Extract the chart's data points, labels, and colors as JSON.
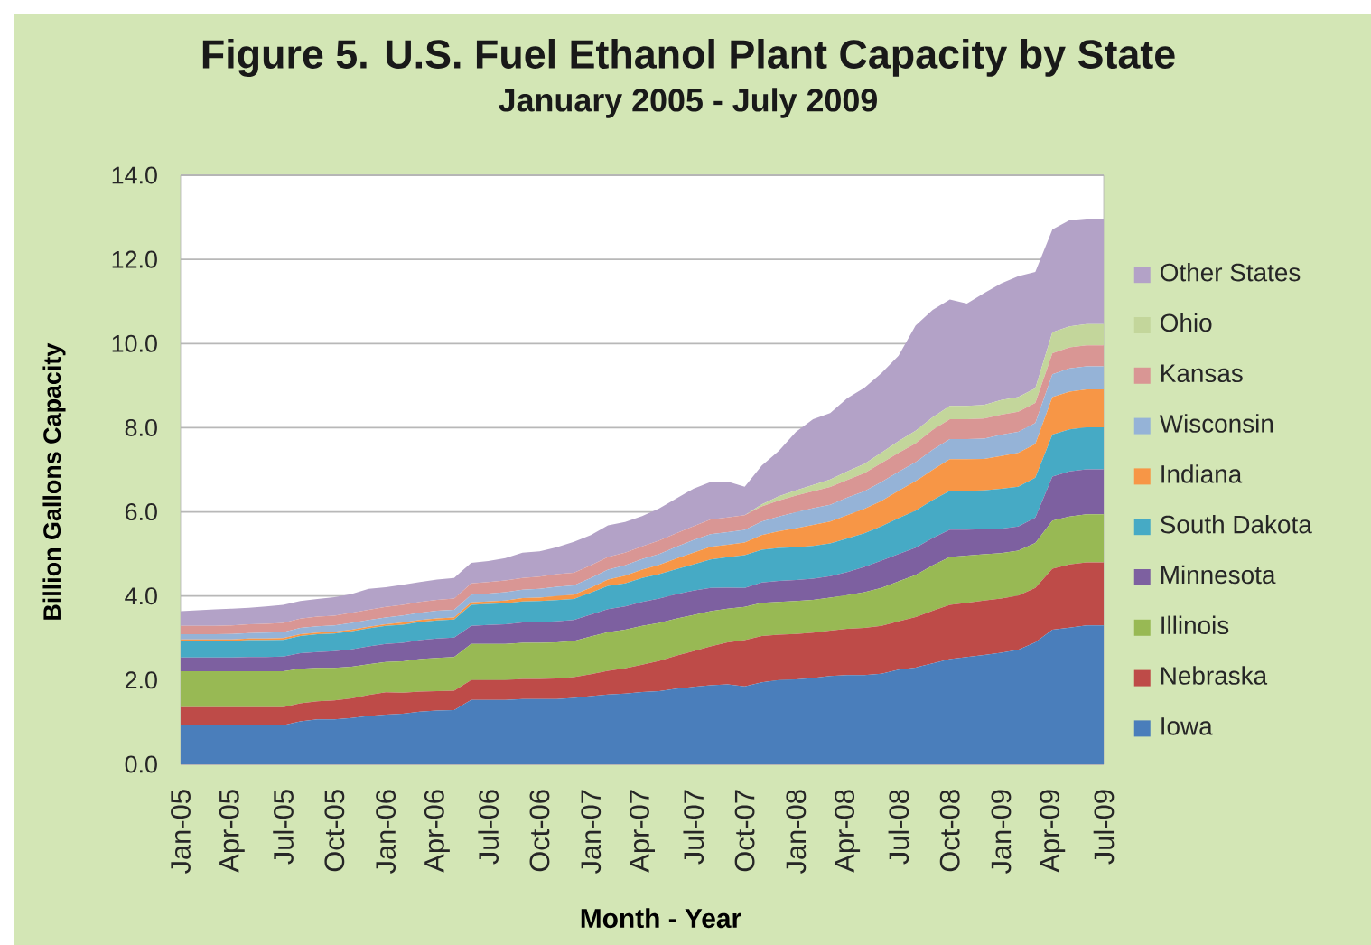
{
  "chart_data": {
    "type": "area",
    "title": "Figure 5. U.S. Fuel Ethanol Plant Capacity by State",
    "subtitle": "January 2005 - July 2009",
    "xlabel": "Month - Year",
    "ylabel": "Billion Gallons Capacity",
    "categories": [
      "Jan-05",
      null,
      null,
      "Apr-05",
      null,
      null,
      "Jul-05",
      null,
      null,
      "Oct-05",
      null,
      null,
      "Jan-06",
      null,
      null,
      "Apr-06",
      null,
      null,
      "Jul-06",
      null,
      null,
      "Oct-06",
      null,
      null,
      "Jan-07",
      null,
      null,
      "Apr-07",
      null,
      null,
      "Jul-07",
      null,
      null,
      "Oct-07",
      null,
      null,
      "Jan-08",
      null,
      null,
      "Apr-08",
      null,
      null,
      "Jul-08",
      null,
      null,
      "Oct-08",
      null,
      null,
      "Jan-09",
      null,
      null,
      "Apr-09",
      null,
      null,
      "Jul-09"
    ],
    "stacked": true,
    "ylim": [
      0,
      14
    ],
    "yticks": [
      {
        "value": 0,
        "label": "0.0"
      },
      {
        "value": 2,
        "label": "2.0"
      },
      {
        "value": 4,
        "label": "4.0"
      },
      {
        "value": 6,
        "label": "6.0"
      },
      {
        "value": 8,
        "label": "8.0"
      },
      {
        "value": 10,
        "label": "10.0"
      },
      {
        "value": 12,
        "label": "12.0"
      },
      {
        "value": 14,
        "label": "14.0"
      }
    ],
    "grid": "y",
    "legend": "right",
    "series": [
      {
        "name": "Iowa",
        "color": "#4a7ebb",
        "values": [
          0.93,
          0.93,
          0.93,
          0.93,
          0.93,
          0.93,
          0.93,
          1.02,
          1.07,
          1.07,
          1.1,
          1.15,
          1.18,
          1.2,
          1.25,
          1.28,
          1.29,
          1.53,
          1.53,
          1.53,
          1.55,
          1.55,
          1.55,
          1.58,
          1.62,
          1.66,
          1.68,
          1.72,
          1.74,
          1.8,
          1.84,
          1.88,
          1.9,
          1.85,
          1.95,
          2.0,
          2.02,
          2.05,
          2.1,
          2.12,
          2.12,
          2.15,
          2.25,
          2.3,
          2.4,
          2.5,
          2.55,
          2.6,
          2.65,
          2.72,
          2.9,
          3.2,
          3.25,
          3.3,
          3.3
        ]
      },
      {
        "name": "Nebraska",
        "color": "#be4b48",
        "values": [
          0.43,
          0.43,
          0.43,
          0.43,
          0.43,
          0.43,
          0.43,
          0.43,
          0.43,
          0.45,
          0.47,
          0.5,
          0.53,
          0.5,
          0.48,
          0.46,
          0.46,
          0.47,
          0.47,
          0.47,
          0.48,
          0.48,
          0.49,
          0.49,
          0.52,
          0.56,
          0.6,
          0.65,
          0.72,
          0.78,
          0.85,
          0.92,
          1.0,
          1.1,
          1.1,
          1.08,
          1.08,
          1.08,
          1.08,
          1.1,
          1.12,
          1.14,
          1.15,
          1.2,
          1.25,
          1.29,
          1.29,
          1.29,
          1.29,
          1.29,
          1.29,
          1.45,
          1.5,
          1.5,
          1.5
        ]
      },
      {
        "name": "Illinois",
        "color": "#98b954",
        "values": [
          0.85,
          0.85,
          0.85,
          0.85,
          0.85,
          0.85,
          0.85,
          0.82,
          0.79,
          0.77,
          0.75,
          0.73,
          0.72,
          0.75,
          0.77,
          0.79,
          0.8,
          0.86,
          0.86,
          0.86,
          0.86,
          0.86,
          0.86,
          0.86,
          0.9,
          0.92,
          0.92,
          0.92,
          0.9,
          0.88,
          0.86,
          0.84,
          0.8,
          0.79,
          0.79,
          0.78,
          0.78,
          0.78,
          0.78,
          0.8,
          0.85,
          0.9,
          0.95,
          1.0,
          1.08,
          1.14,
          1.12,
          1.1,
          1.08,
          1.07,
          1.07,
          1.14,
          1.14,
          1.14,
          1.14
        ]
      },
      {
        "name": "Minnesota",
        "color": "#7d60a0",
        "values": [
          0.33,
          0.33,
          0.33,
          0.33,
          0.34,
          0.34,
          0.35,
          0.37,
          0.38,
          0.4,
          0.41,
          0.42,
          0.43,
          0.44,
          0.45,
          0.46,
          0.46,
          0.43,
          0.45,
          0.47,
          0.48,
          0.49,
          0.5,
          0.5,
          0.52,
          0.55,
          0.55,
          0.57,
          0.58,
          0.58,
          0.58,
          0.55,
          0.5,
          0.45,
          0.48,
          0.5,
          0.5,
          0.5,
          0.51,
          0.55,
          0.6,
          0.65,
          0.65,
          0.65,
          0.65,
          0.65,
          0.62,
          0.6,
          0.58,
          0.57,
          0.6,
          1.05,
          1.07,
          1.07,
          1.07
        ]
      },
      {
        "name": "South Dakota",
        "color": "#46aac5",
        "values": [
          0.39,
          0.39,
          0.39,
          0.39,
          0.4,
          0.4,
          0.4,
          0.41,
          0.42,
          0.42,
          0.43,
          0.43,
          0.43,
          0.43,
          0.43,
          0.43,
          0.43,
          0.5,
          0.5,
          0.5,
          0.5,
          0.5,
          0.5,
          0.5,
          0.52,
          0.55,
          0.55,
          0.57,
          0.58,
          0.6,
          0.62,
          0.68,
          0.72,
          0.78,
          0.78,
          0.78,
          0.78,
          0.78,
          0.78,
          0.8,
          0.8,
          0.82,
          0.85,
          0.88,
          0.9,
          0.92,
          0.92,
          0.92,
          0.95,
          0.95,
          0.95,
          1.0,
          1.0,
          1.0,
          1.0
        ]
      },
      {
        "name": "Indiana",
        "color": "#f79646",
        "values": [
          0.04,
          0.04,
          0.04,
          0.04,
          0.04,
          0.04,
          0.04,
          0.04,
          0.04,
          0.04,
          0.04,
          0.04,
          0.04,
          0.05,
          0.05,
          0.05,
          0.05,
          0.06,
          0.06,
          0.06,
          0.08,
          0.08,
          0.1,
          0.1,
          0.12,
          0.15,
          0.18,
          0.2,
          0.22,
          0.25,
          0.28,
          0.3,
          0.3,
          0.3,
          0.35,
          0.4,
          0.45,
          0.5,
          0.52,
          0.55,
          0.58,
          0.6,
          0.65,
          0.7,
          0.72,
          0.75,
          0.75,
          0.75,
          0.78,
          0.8,
          0.8,
          0.89,
          0.9,
          0.9,
          0.9
        ]
      },
      {
        "name": "Wisconsin",
        "color": "#95b3d7",
        "values": [
          0.12,
          0.12,
          0.12,
          0.13,
          0.13,
          0.14,
          0.14,
          0.15,
          0.15,
          0.15,
          0.16,
          0.16,
          0.16,
          0.17,
          0.17,
          0.18,
          0.18,
          0.18,
          0.19,
          0.2,
          0.2,
          0.21,
          0.22,
          0.22,
          0.23,
          0.24,
          0.25,
          0.25,
          0.26,
          0.28,
          0.3,
          0.3,
          0.3,
          0.3,
          0.32,
          0.35,
          0.38,
          0.4,
          0.4,
          0.42,
          0.42,
          0.45,
          0.45,
          0.45,
          0.48,
          0.48,
          0.48,
          0.48,
          0.5,
          0.5,
          0.5,
          0.54,
          0.55,
          0.55,
          0.55
        ]
      },
      {
        "name": "Kansas",
        "color": "#d99694",
        "values": [
          0.2,
          0.2,
          0.2,
          0.2,
          0.21,
          0.21,
          0.22,
          0.22,
          0.23,
          0.23,
          0.24,
          0.24,
          0.25,
          0.25,
          0.26,
          0.26,
          0.27,
          0.27,
          0.27,
          0.28,
          0.28,
          0.29,
          0.3,
          0.3,
          0.3,
          0.3,
          0.3,
          0.3,
          0.32,
          0.32,
          0.33,
          0.35,
          0.35,
          0.35,
          0.36,
          0.38,
          0.4,
          0.4,
          0.42,
          0.42,
          0.43,
          0.45,
          0.45,
          0.45,
          0.47,
          0.47,
          0.47,
          0.48,
          0.48,
          0.48,
          0.48,
          0.5,
          0.5,
          0.5,
          0.5
        ]
      },
      {
        "name": "Ohio",
        "color": "#c3d69b",
        "values": [
          0,
          0,
          0,
          0,
          0,
          0,
          0,
          0,
          0,
          0,
          0,
          0,
          0,
          0,
          0,
          0,
          0,
          0,
          0,
          0,
          0,
          0,
          0,
          0,
          0,
          0,
          0,
          0,
          0,
          0,
          0,
          0,
          0,
          0,
          0.05,
          0.1,
          0.12,
          0.15,
          0.18,
          0.2,
          0.22,
          0.25,
          0.28,
          0.3,
          0.3,
          0.32,
          0.32,
          0.32,
          0.35,
          0.35,
          0.35,
          0.5,
          0.5,
          0.5,
          0.5
        ]
      },
      {
        "name": "Other States",
        "color": "#b3a2c7",
        "values": [
          0.35,
          0.37,
          0.39,
          0.4,
          0.39,
          0.41,
          0.43,
          0.42,
          0.42,
          0.44,
          0.45,
          0.5,
          0.47,
          0.48,
          0.47,
          0.48,
          0.49,
          0.49,
          0.5,
          0.53,
          0.6,
          0.6,
          0.64,
          0.74,
          0.72,
          0.75,
          0.73,
          0.72,
          0.76,
          0.83,
          0.89,
          0.89,
          0.85,
          0.68,
          0.92,
          1.08,
          1.39,
          1.56,
          1.58,
          1.74,
          1.81,
          1.89,
          2.03,
          2.5,
          2.55,
          2.53,
          2.43,
          2.66,
          2.77,
          2.87,
          2.76,
          2.44,
          2.52,
          2.51,
          2.51
        ]
      }
    ]
  }
}
